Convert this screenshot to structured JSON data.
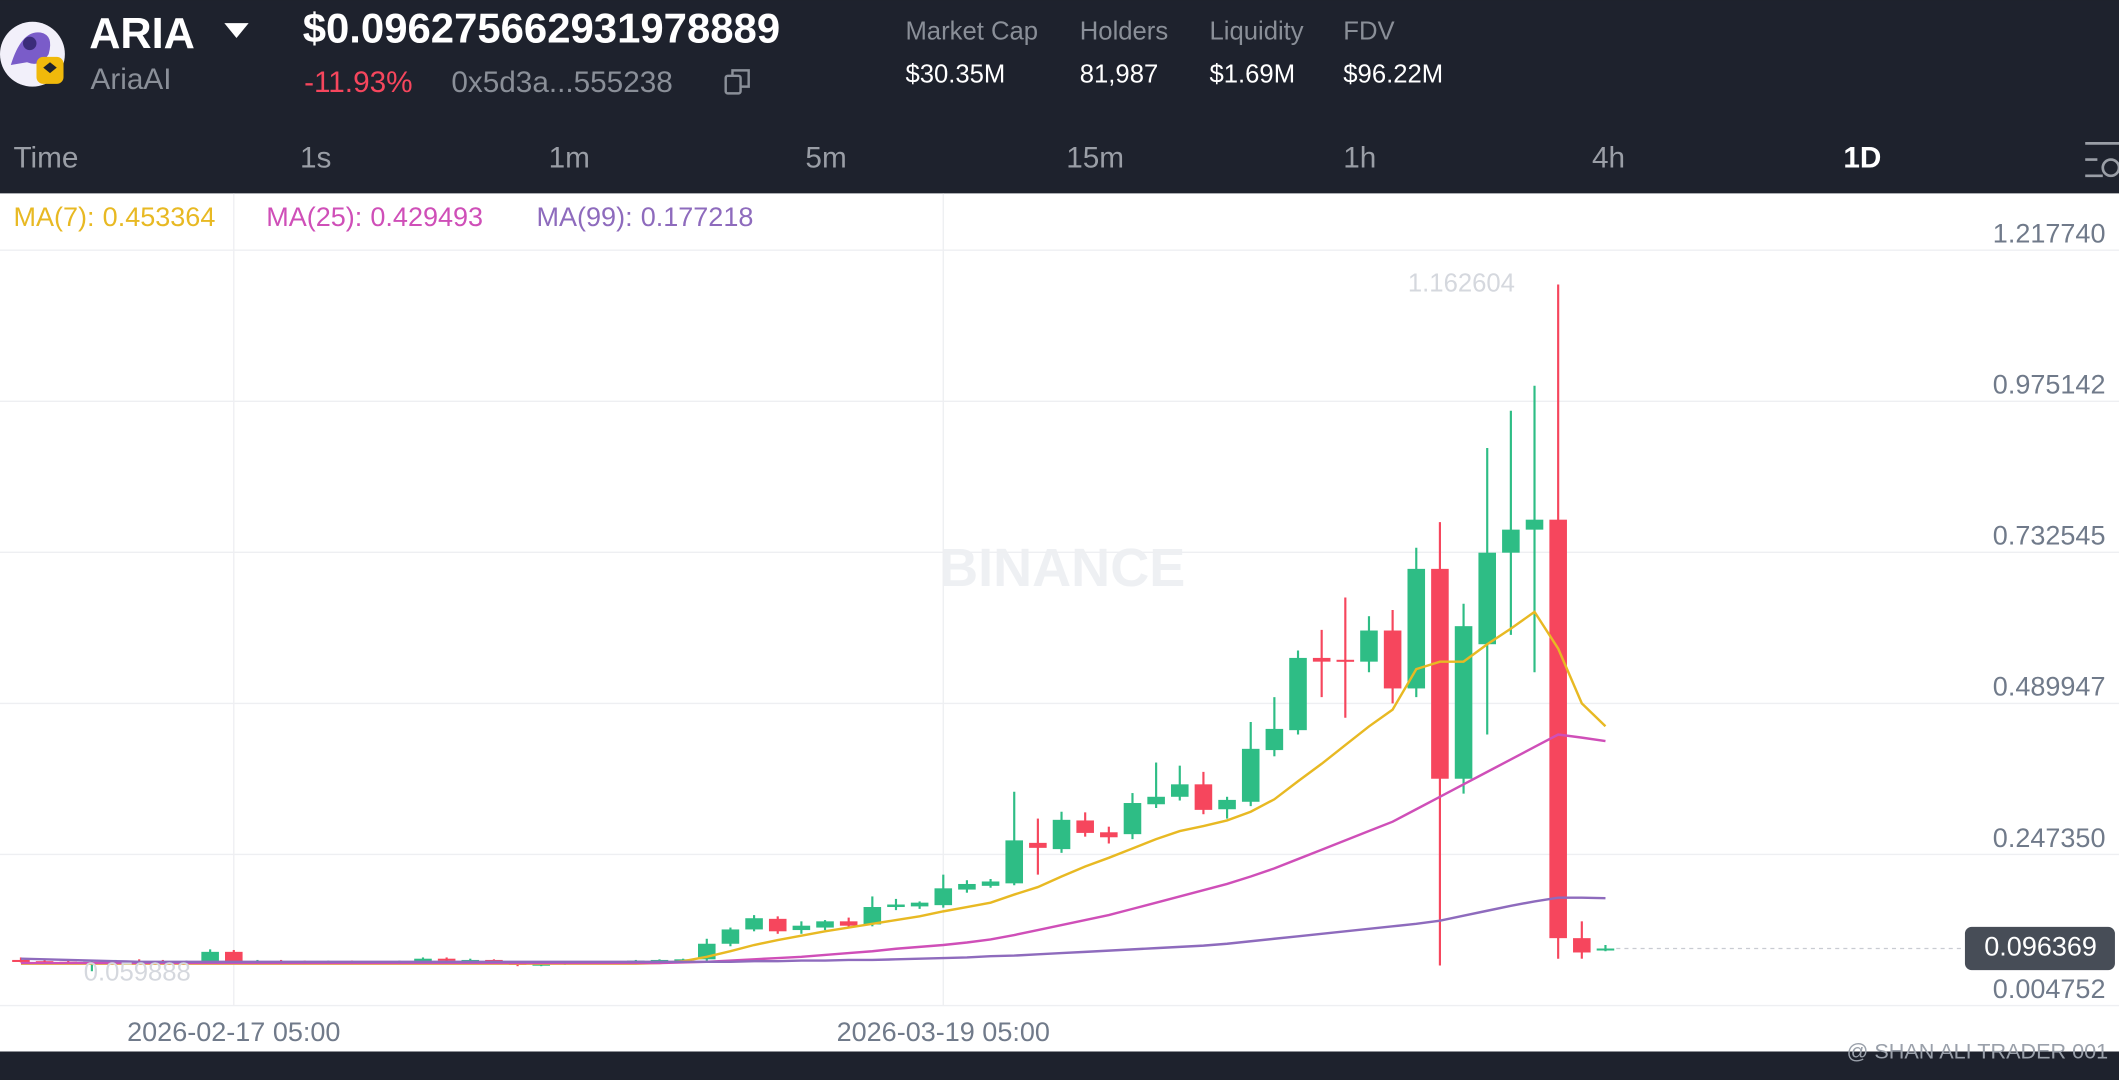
{
  "header": {
    "symbol": "ARIA",
    "name": "AriaAI",
    "price": "$0.096275662931978889",
    "change": "-11.93%",
    "address": "0x5d3a...555238",
    "stats": [
      {
        "label": "Market Cap",
        "value": "$30.35M"
      },
      {
        "label": "Holders",
        "value": "81,987"
      },
      {
        "label": "Liquidity",
        "value": "$1.69M"
      },
      {
        "label": "FDV",
        "value": "$96.22M"
      }
    ]
  },
  "tabs": [
    "Time",
    "1s",
    "1m",
    "5m",
    "15m",
    "1h",
    "4h",
    "1D"
  ],
  "watermark": "@ SHAN ALI TRADER 001",
  "chart_watermark": "BINANCE",
  "chart_data": {
    "type": "candlestick",
    "up_color": "#2ebd85",
    "down_color": "#f6465d",
    "grid": true,
    "ylim": [
      0.004752,
      1.309
    ],
    "yticks": [
      {
        "value": 1.21774,
        "label": "1.217740"
      },
      0.975142,
      0.732545,
      0.489947,
      {
        "value": 0.24735,
        "label": "0.247350"
      },
      0.004752
    ],
    "xticks": [
      {
        "value": 9,
        "label": "2026-02-17 05:00"
      },
      {
        "value": 39,
        "label": "2026-03-19 05:00"
      }
    ],
    "categories": [
      null,
      null,
      null,
      null,
      null,
      null,
      null,
      null,
      null,
      null,
      null,
      null,
      null,
      null,
      null,
      null,
      null,
      null,
      null,
      null,
      null,
      null,
      null,
      null,
      null,
      null,
      null,
      null,
      null,
      null,
      null,
      null,
      null,
      null,
      null,
      null,
      null,
      null,
      null,
      null,
      null,
      null,
      null,
      null,
      null,
      null,
      null,
      null,
      null,
      null,
      null,
      null,
      null,
      null,
      null,
      null,
      null,
      null,
      null,
      null,
      null,
      null,
      null,
      null,
      null,
      null,
      null,
      null
    ],
    "open": [
      0.078,
      0.076,
      0.075,
      0.074,
      0.075,
      0.076,
      0.075,
      0.074,
      0.076,
      0.091,
      0.075,
      0.076,
      0.075,
      0.074,
      0.075,
      0.074,
      0.073,
      0.076,
      0.08,
      0.077,
      0.078,
      0.074,
      0.07,
      0.072,
      0.074,
      0.073,
      0.075,
      0.077,
      0.078,
      0.079,
      0.104,
      0.127,
      0.144,
      0.126,
      0.13,
      0.14,
      0.135,
      0.163,
      0.164,
      0.166,
      0.191,
      0.197,
      0.201,
      0.266,
      0.256,
      0.302,
      0.283,
      0.28,
      0.328,
      0.34,
      0.36,
      0.32,
      0.332,
      0.415,
      0.447,
      0.563,
      0.56,
      0.557,
      0.607,
      0.514,
      0.706,
      0.369,
      0.585,
      0.732,
      0.769,
      0.785,
      0.113,
      0.094
    ],
    "high": [
      0.082,
      0.079,
      0.078,
      0.077,
      0.078,
      0.079,
      0.078,
      0.077,
      0.095,
      0.094,
      0.078,
      0.078,
      0.077,
      0.077,
      0.077,
      0.076,
      0.077,
      0.082,
      0.082,
      0.08,
      0.079,
      0.075,
      0.074,
      0.075,
      0.076,
      0.076,
      0.078,
      0.079,
      0.08,
      0.112,
      0.13,
      0.15,
      0.148,
      0.14,
      0.142,
      0.146,
      0.18,
      0.176,
      0.172,
      0.215,
      0.206,
      0.208,
      0.348,
      0.305,
      0.316,
      0.315,
      0.292,
      0.346,
      0.395,
      0.39,
      0.38,
      0.34,
      0.46,
      0.5,
      0.575,
      0.608,
      0.66,
      0.63,
      0.64,
      0.74,
      0.781,
      0.65,
      0.9,
      0.96,
      1.0,
      1.162604,
      0.14,
      0.102
    ],
    "low": [
      0.074,
      0.073,
      0.072,
      0.059888,
      0.072,
      0.073,
      0.072,
      0.071,
      0.074,
      0.072,
      0.072,
      0.073,
      0.072,
      0.072,
      0.073,
      0.071,
      0.071,
      0.074,
      0.075,
      0.074,
      0.073,
      0.068,
      0.068,
      0.07,
      0.071,
      0.071,
      0.073,
      0.074,
      0.075,
      0.076,
      0.1,
      0.124,
      0.12,
      0.12,
      0.126,
      0.13,
      0.132,
      0.158,
      0.16,
      0.162,
      0.186,
      0.194,
      0.198,
      0.215,
      0.25,
      0.276,
      0.265,
      0.272,
      0.322,
      0.334,
      0.312,
      0.305,
      0.325,
      0.405,
      0.44,
      0.5,
      0.467,
      0.54,
      0.49,
      0.5,
      0.069,
      0.345,
      0.44,
      0.6,
      0.54,
      0.08,
      0.08,
      0.092
    ],
    "close": [
      0.076,
      0.075,
      0.074,
      0.075,
      0.076,
      0.075,
      0.074,
      0.075,
      0.091,
      0.075,
      0.076,
      0.075,
      0.074,
      0.075,
      0.074,
      0.073,
      0.076,
      0.08,
      0.077,
      0.078,
      0.074,
      0.07,
      0.072,
      0.074,
      0.073,
      0.075,
      0.077,
      0.078,
      0.079,
      0.104,
      0.127,
      0.145,
      0.124,
      0.133,
      0.14,
      0.133,
      0.163,
      0.167,
      0.17,
      0.193,
      0.2,
      0.204,
      0.27,
      0.258,
      0.303,
      0.282,
      0.275,
      0.33,
      0.34,
      0.36,
      0.319,
      0.335,
      0.417,
      0.449,
      0.563,
      0.557,
      0.557,
      0.607,
      0.514,
      0.706,
      0.369,
      0.614,
      0.732,
      0.769,
      0.785,
      0.113,
      0.09,
      0.096369
    ],
    "series": [
      {
        "name": "MA(7):",
        "color": "#e8b923",
        "values": [
          0.072,
          0.072,
          0.072,
          0.072,
          0.072,
          0.072,
          0.072,
          0.072,
          0.072,
          0.072,
          0.072,
          0.072,
          0.072,
          0.072,
          0.072,
          0.072,
          0.072,
          0.072,
          0.072,
          0.072,
          0.072,
          0.072,
          0.072,
          0.072,
          0.072,
          0.072,
          0.072,
          0.073,
          0.076,
          0.083,
          0.092,
          0.102,
          0.11,
          0.117,
          0.124,
          0.13,
          0.136,
          0.142,
          0.148,
          0.156,
          0.163,
          0.17,
          0.183,
          0.195,
          0.212,
          0.228,
          0.242,
          0.257,
          0.272,
          0.285,
          0.293,
          0.302,
          0.316,
          0.336,
          0.365,
          0.393,
          0.423,
          0.453,
          0.48,
          0.545,
          0.557,
          0.557,
          0.585,
          0.61,
          0.637,
          0.578,
          0.49,
          0.453364
        ]
      },
      {
        "name": "MA(25):",
        "color": "#cf4fb8",
        "values": [
          0.073,
          0.073,
          0.073,
          0.073,
          0.073,
          0.073,
          0.073,
          0.073,
          0.073,
          0.073,
          0.073,
          0.073,
          0.073,
          0.073,
          0.073,
          0.073,
          0.073,
          0.073,
          0.073,
          0.073,
          0.073,
          0.073,
          0.073,
          0.073,
          0.073,
          0.073,
          0.073,
          0.073,
          0.074,
          0.075,
          0.077,
          0.079,
          0.081,
          0.083,
          0.086,
          0.089,
          0.092,
          0.096,
          0.099,
          0.102,
          0.106,
          0.111,
          0.118,
          0.126,
          0.134,
          0.142,
          0.15,
          0.16,
          0.17,
          0.18,
          0.19,
          0.2,
          0.212,
          0.225,
          0.24,
          0.255,
          0.27,
          0.285,
          0.3,
          0.32,
          0.34,
          0.36,
          0.38,
          0.4,
          0.42,
          0.44,
          0.435,
          0.429493
        ]
      },
      {
        "name": "MA(99):",
        "color": "#8e6bbd",
        "values": [
          0.08,
          0.079,
          0.078,
          0.077,
          0.076,
          0.075,
          0.075,
          0.075,
          0.075,
          0.075,
          0.075,
          0.075,
          0.075,
          0.075,
          0.075,
          0.075,
          0.075,
          0.075,
          0.075,
          0.075,
          0.075,
          0.075,
          0.075,
          0.075,
          0.075,
          0.075,
          0.075,
          0.075,
          0.075,
          0.075,
          0.075,
          0.076,
          0.076,
          0.077,
          0.077,
          0.078,
          0.078,
          0.079,
          0.08,
          0.081,
          0.082,
          0.084,
          0.085,
          0.087,
          0.089,
          0.091,
          0.093,
          0.095,
          0.097,
          0.099,
          0.101,
          0.104,
          0.108,
          0.112,
          0.116,
          0.12,
          0.124,
          0.128,
          0.132,
          0.136,
          0.141,
          0.149,
          0.157,
          0.165,
          0.172,
          0.178,
          0.178,
          0.177218
        ]
      }
    ]
  }
}
